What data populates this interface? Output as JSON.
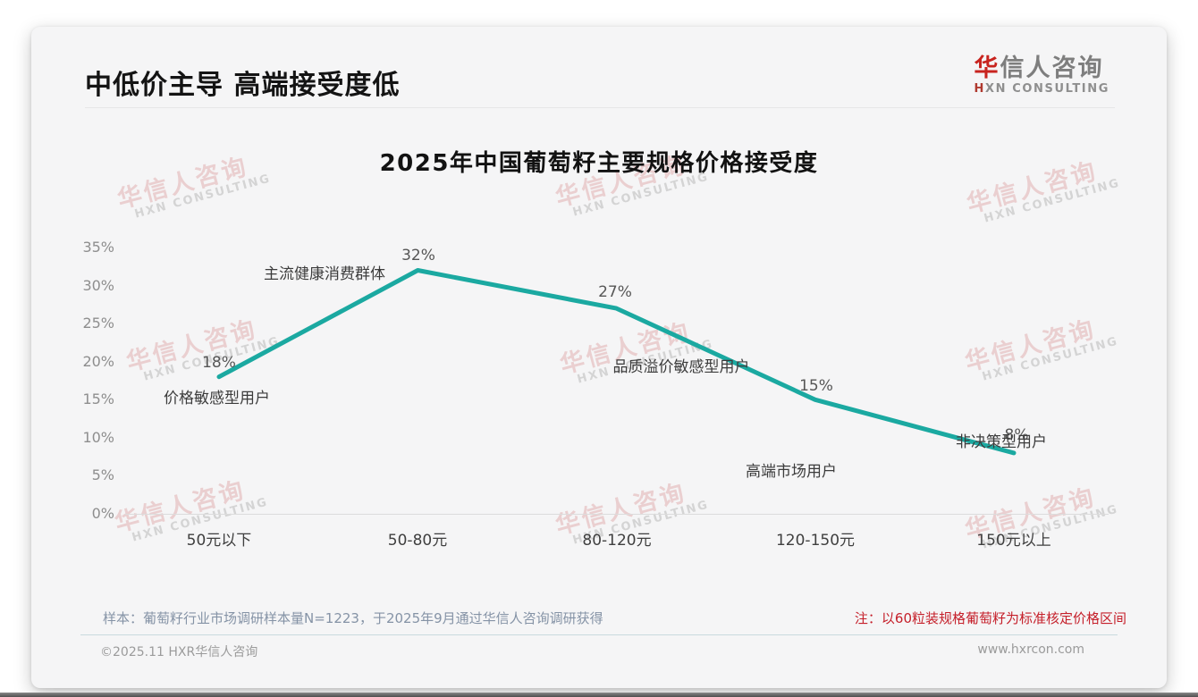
{
  "page": {
    "title": "中低价主导 高端接受度低"
  },
  "logo": {
    "cn_first": "华",
    "cn_rest": "信人咨询",
    "en_first": "H",
    "en_rest": "XN CONSULTING"
  },
  "watermark": {
    "cn": "华信人咨询",
    "en": "HXN CONSULTING"
  },
  "chart_data": {
    "type": "line",
    "title": "2025年中国葡萄籽主要规格价格接受度",
    "categories": [
      "50元以下",
      "50-80元",
      "80-120元",
      "120-150元",
      "150元以上"
    ],
    "values": [
      18,
      32,
      27,
      15,
      8
    ],
    "value_labels": [
      "18%",
      "32%",
      "27%",
      "15%",
      "8%"
    ],
    "annotations": [
      "价格敏感型用户",
      "主流健康消费群体",
      "品质溢价敏感型用户",
      "高端市场用户",
      "非决策型用户"
    ],
    "y_ticks": [
      "35%",
      "30%",
      "25%",
      "20%",
      "15%",
      "10%",
      "5%",
      "0%"
    ],
    "ylim": [
      0,
      35
    ],
    "xlabel": "",
    "ylabel": "",
    "grid": false,
    "legend": "none",
    "line_color": "#1BA9A1"
  },
  "footer": {
    "sample_note": "样本：葡萄籽行业市场调研样本量N=1223，于2025年9月通过华信人咨询调研获得",
    "price_note": "注：以60粒装规格葡萄籽为标准核定价格区间",
    "copyright": "©2025.11 HXR华信人咨询",
    "website": "www.hxrcon.com"
  }
}
